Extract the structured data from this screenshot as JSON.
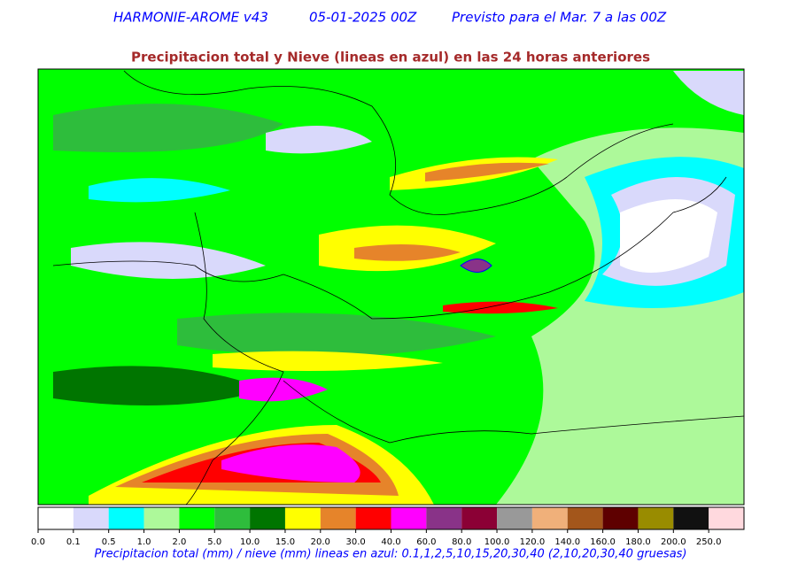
{
  "header": {
    "model": "HARMONIE-AROME v43",
    "run": "05-01-2025 00Z",
    "forecast": "Previsto para el Mar. 7 a las 00Z"
  },
  "title": "Precipitacion total y Nieve (lineas en azul) en las 24 horas anteriores",
  "colorbar": {
    "ticks": [
      "0.0",
      "0.1",
      "0.5",
      "1.0",
      "2.0",
      "5.0",
      "10.0",
      "15.0",
      "20.0",
      "30.0",
      "40.0",
      "60.0",
      "80.0",
      "100.0",
      "120.0",
      "140.0",
      "160.0",
      "180.0",
      "200.0",
      "250.0"
    ],
    "colors": [
      "#ffffff",
      "#d9d9fb",
      "#00ffff",
      "#adf99a",
      "#00ff00",
      "#2ebd3c",
      "#007500",
      "#ffff00",
      "#e6842a",
      "#ff0000",
      "#ff00ff",
      "#893388",
      "#8b0035",
      "#999999",
      "#f0b07a",
      "#a3561b",
      "#5e0000",
      "#998c00",
      "#111111",
      "#ffd9de"
    ]
  },
  "caption": "Precipitacion total (mm) / nieve (mm) lineas en azul: 0.1,1,2,5,10,15,20,30,40  (2,10,20,30,40 gruesas)"
}
